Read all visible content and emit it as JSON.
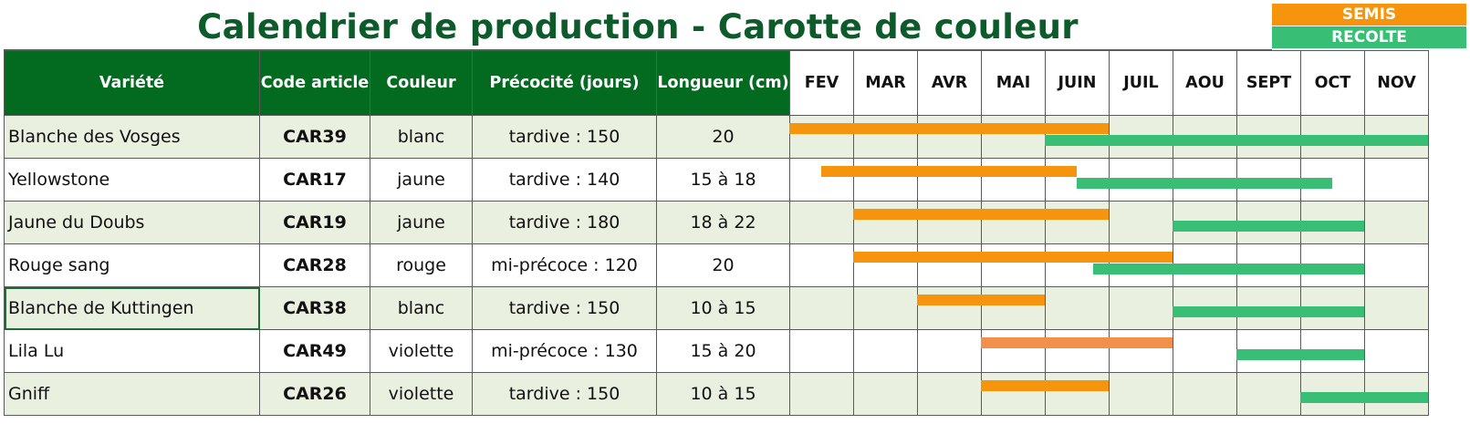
{
  "title": "Calendrier de production - Carotte de couleur",
  "legend": {
    "semis": {
      "label": "SEMIS",
      "color": "#f7940e"
    },
    "recolte": {
      "label": "RECOLTE",
      "color": "#39bf75"
    }
  },
  "columns": {
    "variety": "Variété",
    "code": "Code article",
    "color": "Couleur",
    "precocity": "Précocité (jours)",
    "length": "Longueur (cm)"
  },
  "months": [
    "FEV",
    "MAR",
    "AVR",
    "MAI",
    "JUIN",
    "JUIL",
    "AOU",
    "SEPT",
    "OCT",
    "NOV"
  ],
  "rows": [
    {
      "variety": "Blanche des Vosges",
      "code": "CAR39",
      "color": "blanc",
      "precocity": "tardive : 150",
      "length": "20",
      "semis": [
        0,
        5
      ],
      "recolte": [
        4,
        10
      ],
      "semis_color": "#f7940e"
    },
    {
      "variety": "Yellowstone",
      "code": "CAR17",
      "color": "jaune",
      "precocity": "tardive : 140",
      "length": "15 à 18",
      "semis": [
        0.5,
        4.5
      ],
      "recolte": [
        4.5,
        8.5
      ],
      "semis_color": "#f7940e"
    },
    {
      "variety": "Jaune du Doubs",
      "code": "CAR19",
      "color": "jaune",
      "precocity": "tardive : 180",
      "length": "18 à 22",
      "semis": [
        1,
        5
      ],
      "recolte": [
        6,
        9
      ],
      "semis_color": "#f7940e"
    },
    {
      "variety": "Rouge sang",
      "code": "CAR28",
      "color": "rouge",
      "precocity": "mi-précoce : 120",
      "length": "20",
      "semis": [
        1,
        6
      ],
      "recolte": [
        4.75,
        9
      ],
      "semis_color": "#f7940e"
    },
    {
      "variety": "Blanche de Kuttingen",
      "code": "CAR38",
      "color": "blanc",
      "precocity": "tardive : 150",
      "length": "10 à 15",
      "semis": [
        2,
        4
      ],
      "recolte": [
        6,
        9
      ],
      "semis_color": "#f7940e"
    },
    {
      "variety": "Lila Lu",
      "code": "CAR49",
      "color": "violette",
      "precocity": "mi-précoce : 130",
      "length": "15 à 20",
      "semis": [
        3,
        6
      ],
      "recolte": [
        7,
        9
      ],
      "semis_color": "#f0904a"
    },
    {
      "variety": "Gniff",
      "code": "CAR26",
      "color": "violette",
      "precocity": "tardive : 150",
      "length": "10 à 15",
      "semis": [
        3,
        5
      ],
      "recolte": [
        8,
        10
      ],
      "semis_color": "#f7940e"
    }
  ]
}
